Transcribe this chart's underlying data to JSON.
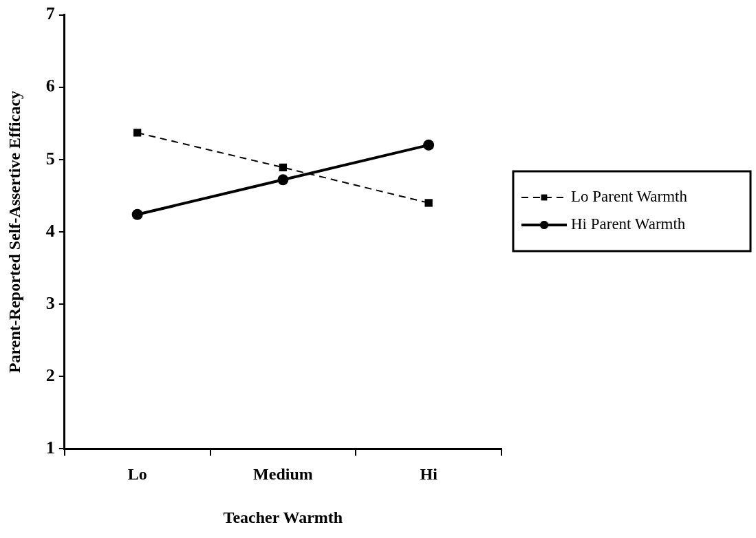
{
  "chart_data": {
    "type": "line",
    "xlabel": "Teacher Warmth",
    "ylabel": "Parent-Reported Self-Assertive Efficacy",
    "categories": [
      "Lo",
      "Medium",
      "Hi"
    ],
    "series": [
      {
        "name": "Lo Parent Warmth",
        "color": "#000000",
        "values": [
          5.37,
          4.89,
          4.4
        ],
        "marker": "square",
        "line_style": "dashed"
      },
      {
        "name": "Hi Parent Warmth",
        "color": "#000000",
        "values": [
          4.24,
          4.72,
          5.2
        ],
        "marker": "circle",
        "line_style": "solid"
      }
    ],
    "ylim": [
      1,
      7
    ],
    "yticks": [
      1,
      2,
      3,
      4,
      5,
      6,
      7
    ],
    "grid": false,
    "legend": "right"
  }
}
